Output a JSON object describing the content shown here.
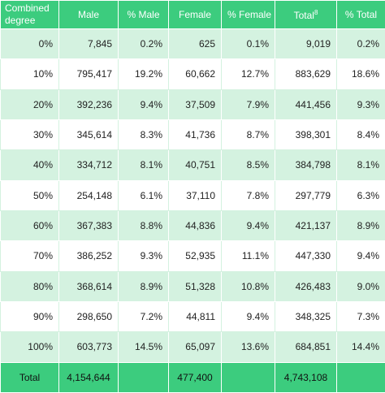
{
  "table": {
    "header": [
      {
        "text": "Combined degree"
      },
      {
        "text": "Male"
      },
      {
        "text": "% Male"
      },
      {
        "text": "Female"
      },
      {
        "text": "% Female"
      },
      {
        "text": "Total",
        "sup": "8"
      },
      {
        "text": "% Total"
      }
    ],
    "rows": [
      [
        "0%",
        "7,845",
        "0.2%",
        "625",
        "0.1%",
        "9,019",
        "0.2%"
      ],
      [
        "10%",
        "795,417",
        "19.2%",
        "60,662",
        "12.7%",
        "883,629",
        "18.6%"
      ],
      [
        "20%",
        "392,236",
        "9.4%",
        "37,509",
        "7.9%",
        "441,456",
        "9.3%"
      ],
      [
        "30%",
        "345,614",
        "8.3%",
        "41,736",
        "8.7%",
        "398,301",
        "8.4%"
      ],
      [
        "40%",
        "334,712",
        "8.1%",
        "40,751",
        "8.5%",
        "384,798",
        "8.1%"
      ],
      [
        "50%",
        "254,148",
        "6.1%",
        "37,110",
        "7.8%",
        "297,779",
        "6.3%"
      ],
      [
        "60%",
        "367,383",
        "8.8%",
        "44,836",
        "9.4%",
        "421,137",
        "8.9%"
      ],
      [
        "70%",
        "386,252",
        "9.3%",
        "52,935",
        "11.1%",
        "447,330",
        "9.4%"
      ],
      [
        "80%",
        "368,614",
        "8.9%",
        "51,328",
        "10.8%",
        "426,483",
        "9.0%"
      ],
      [
        "90%",
        "298,650",
        "7.2%",
        "44,811",
        "9.4%",
        "348,325",
        "7.3%"
      ],
      [
        "100%",
        "603,773",
        "14.5%",
        "65,097",
        "13.6%",
        "684,851",
        "14.4%"
      ]
    ],
    "total": [
      "Total",
      "4,154,644",
      null,
      "477,400",
      null,
      "4,743,108",
      null
    ]
  }
}
